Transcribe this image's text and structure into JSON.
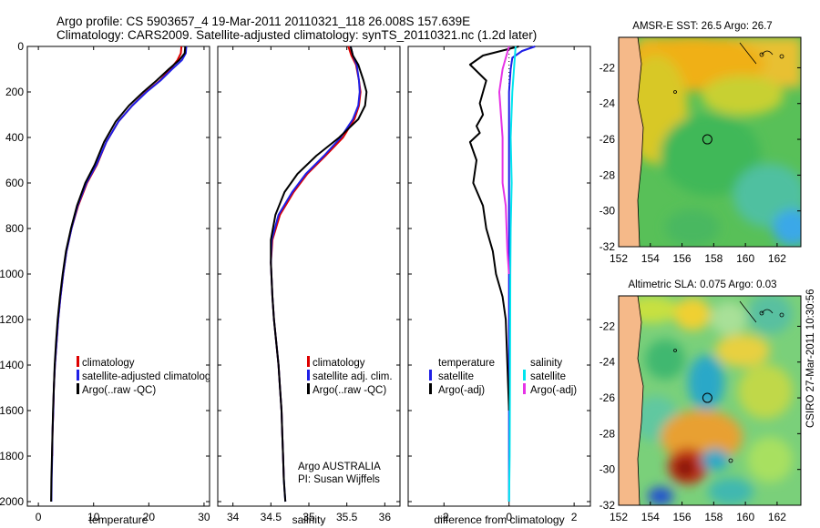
{
  "header": {
    "title_line1": "Argo profile: CS 5903657_4 19-Mar-2011 20110321_118 26.008S 157.639E",
    "title_line2": "Climatology: CARS2009. Satellite-adjusted climatology: synTS_20110321.nc (1.2d later)"
  },
  "colors": {
    "climatology": "#dd0000",
    "satellite": "#1f1fe6",
    "argo": "#000000",
    "temp_satellite_diff": "#1f1fe6",
    "salinity_satellite_diff": "#00e5ee",
    "salinity_argo_diff": "#e633e6",
    "land": "#f5b989"
  },
  "credits": {
    "line1": "Argo AUSTRALIA",
    "line2": "PI: Susan Wijffels"
  },
  "side_label": "CSIRO 27-Mar-2011 10:30:56",
  "chart_data": [
    {
      "id": "temperature",
      "type": "line",
      "xlabel": "temperature",
      "xlim": [
        -2,
        31
      ],
      "xticks": [
        0,
        10,
        20,
        30
      ],
      "ylim": [
        0,
        2020
      ],
      "yticks": [
        0,
        200,
        400,
        600,
        800,
        1000,
        1200,
        1400,
        1600,
        1800,
        2000
      ],
      "y_reversed": true,
      "legend": {
        "placement": "lower-right",
        "entries": [
          "climatology",
          "satellite-adjusted climatology",
          "Argo(..raw -QC)"
        ]
      },
      "series": [
        {
          "name": "climatology",
          "color_key": "climatology",
          "x": [
            25.9,
            25.8,
            25.2,
            23.9,
            22.0,
            19.5,
            17.0,
            14.5,
            12.3,
            10.6,
            8.8,
            7.2,
            6.0,
            5.1,
            4.5,
            4.0,
            3.6,
            3.3,
            3.0,
            2.8,
            2.7,
            2.55,
            2.5
          ],
          "y": [
            0,
            30,
            60,
            100,
            150,
            200,
            260,
            330,
            420,
            520,
            600,
            700,
            800,
            900,
            1000,
            1100,
            1200,
            1300,
            1400,
            1500,
            1600,
            1700,
            1800
          ]
        },
        {
          "name": "satellite-adjusted climatology",
          "color_key": "satellite",
          "x": [
            26.8,
            26.7,
            26.0,
            24.2,
            22.1,
            19.6,
            17.0,
            14.5,
            12.3,
            10.5,
            8.7,
            7.1,
            6.0,
            5.1,
            4.5,
            4.0,
            3.6,
            3.3,
            3.0,
            2.8,
            2.7,
            2.55,
            2.5,
            2.4,
            2.35
          ],
          "y": [
            0,
            30,
            60,
            100,
            150,
            200,
            260,
            330,
            420,
            520,
            600,
            700,
            800,
            900,
            1000,
            1100,
            1200,
            1300,
            1400,
            1500,
            1600,
            1700,
            1800,
            1900,
            2000
          ]
        },
        {
          "name": "Argo(..raw -QC)",
          "color_key": "argo",
          "x": [
            26.6,
            26.5,
            25.5,
            23.6,
            21.4,
            19.0,
            16.4,
            14.0,
            11.9,
            10.2,
            8.5,
            7.0,
            5.9,
            5.0,
            4.4,
            3.9,
            3.5,
            3.2,
            2.95,
            2.8,
            2.65,
            2.55,
            2.45,
            2.35,
            2.3
          ],
          "y": [
            0,
            30,
            60,
            100,
            150,
            200,
            260,
            330,
            420,
            520,
            600,
            700,
            800,
            900,
            1000,
            1100,
            1200,
            1300,
            1400,
            1500,
            1600,
            1700,
            1800,
            1900,
            2000
          ]
        }
      ]
    },
    {
      "id": "salinity",
      "type": "line",
      "xlabel": "salinity",
      "xlim": [
        33.8,
        36.2
      ],
      "xticks": [
        34,
        34.5,
        35,
        35.5,
        36
      ],
      "ylim": [
        0,
        2020
      ],
      "y_reversed": true,
      "legend": {
        "placement": "lower-right",
        "entries": [
          "climatology",
          "satellite adj. clim.",
          "Argo(..raw -QC)"
        ]
      },
      "series": [
        {
          "name": "climatology",
          "color_key": "climatology",
          "x": [
            35.52,
            35.56,
            35.62,
            35.66,
            35.68,
            35.66,
            35.6,
            35.45,
            35.22,
            34.98,
            34.8,
            34.62,
            34.52,
            34.5,
            34.52,
            34.54,
            34.57,
            34.6,
            34.62,
            34.64,
            34.65,
            34.66,
            34.67
          ],
          "y": [
            0,
            40,
            80,
            150,
            200,
            260,
            320,
            400,
            480,
            560,
            640,
            740,
            850,
            950,
            1100,
            1200,
            1300,
            1400,
            1500,
            1600,
            1700,
            1800,
            1900
          ]
        },
        {
          "name": "satellite adj. clim.",
          "color_key": "satellite",
          "x": [
            35.55,
            35.58,
            35.63,
            35.66,
            35.67,
            35.65,
            35.58,
            35.42,
            35.2,
            34.96,
            34.78,
            34.6,
            34.51,
            34.5,
            34.52,
            34.54,
            34.57,
            34.6,
            34.62,
            34.64,
            34.65,
            34.66,
            34.67,
            34.68,
            34.69
          ],
          "y": [
            0,
            40,
            80,
            150,
            200,
            260,
            320,
            400,
            480,
            560,
            640,
            740,
            850,
            950,
            1100,
            1200,
            1300,
            1400,
            1500,
            1600,
            1700,
            1800,
            1900,
            1950,
            2000
          ]
        },
        {
          "name": "Argo(..raw -QC)",
          "color_key": "argo",
          "x": [
            35.55,
            35.58,
            35.65,
            35.72,
            35.76,
            35.74,
            35.65,
            35.4,
            35.1,
            34.85,
            34.68,
            34.56,
            34.5,
            34.5,
            34.52,
            34.54,
            34.57,
            34.6,
            34.62,
            34.64,
            34.65,
            34.66,
            34.67,
            34.68,
            34.69
          ],
          "y": [
            0,
            40,
            80,
            150,
            200,
            260,
            320,
            400,
            480,
            560,
            640,
            740,
            850,
            950,
            1100,
            1200,
            1300,
            1400,
            1500,
            1600,
            1700,
            1800,
            1900,
            1950,
            2000
          ]
        }
      ]
    },
    {
      "id": "difference",
      "type": "line",
      "xlabel": "difference from climatology",
      "xlim": [
        -3.1,
        2.5
      ],
      "xticks": [
        -2,
        0,
        2
      ],
      "ylim": [
        0,
        2020
      ],
      "y_reversed": true,
      "zero_line": "dotted",
      "legend": {
        "placement": "lower-center",
        "temperature_heading": "temperature",
        "salinity_heading": "salinity",
        "temperature_entries": [
          "satellite",
          "Argo(-adj)"
        ],
        "salinity_entries": [
          "satellite",
          "Argo(-adj)"
        ]
      },
      "series": [
        {
          "name": "temperature satellite",
          "color_key": "temp_satellite_diff",
          "x": [
            0.8,
            0.4,
            0.1,
            0.05,
            0.0,
            0.0,
            0.0,
            0.0,
            0.0
          ],
          "y": [
            0,
            20,
            50,
            100,
            200,
            400,
            800,
            1400,
            2000
          ]
        },
        {
          "name": "temperature Argo(-adj)",
          "color_key": "argo",
          "x": [
            0.3,
            -0.8,
            -1.2,
            -0.7,
            -0.9,
            -0.8,
            -1.0,
            -0.9,
            -1.2,
            -1.0,
            -1.1,
            -0.8,
            -0.7,
            -0.5,
            -0.4,
            -0.2,
            -0.1,
            -0.05,
            0.0
          ],
          "y": [
            0,
            40,
            80,
            150,
            250,
            300,
            350,
            380,
            420,
            500,
            600,
            700,
            800,
            900,
            1000,
            1100,
            1200,
            1400,
            1600
          ]
        },
        {
          "name": "salinity satellite",
          "color_key": "salinity_satellite_diff",
          "x": [
            0.2,
            0.15,
            0.1,
            0.05,
            0.08,
            0.05,
            0.04,
            0.03,
            0.02,
            0.0
          ],
          "y": [
            0,
            100,
            200,
            400,
            600,
            800,
            1000,
            1400,
            1800,
            2000
          ]
        },
        {
          "name": "salinity Argo(-adj)",
          "color_key": "salinity_argo_diff",
          "x": [
            0.0,
            -0.2,
            -0.3,
            -0.2,
            -0.2,
            -0.1,
            -0.05,
            0.0
          ],
          "y": [
            0,
            100,
            200,
            400,
            600,
            700,
            900,
            1000
          ]
        }
      ]
    },
    {
      "id": "sst_map",
      "type": "heatmap",
      "title": "AMSR-E SST: 26.5 Argo: 26.7",
      "xlim": [
        152,
        163.5
      ],
      "ylim": [
        -32,
        -20.3
      ],
      "xticks": [
        152,
        154,
        156,
        158,
        160,
        162
      ],
      "yticks": [
        -22,
        -24,
        -26,
        -28,
        -30,
        -32
      ],
      "marker": {
        "lon": 157.6,
        "lat": -26.0
      }
    },
    {
      "id": "sla_map",
      "type": "heatmap",
      "title": "Altimetric SLA: 0.075 Argo: 0.03",
      "xlim": [
        152,
        163.5
      ],
      "ylim": [
        -32,
        -20.3
      ],
      "xticks": [
        152,
        154,
        156,
        158,
        160,
        162
      ],
      "yticks": [
        -22,
        -24,
        -26,
        -28,
        -30,
        -32
      ],
      "marker": {
        "lon": 157.6,
        "lat": -26.0
      }
    }
  ]
}
